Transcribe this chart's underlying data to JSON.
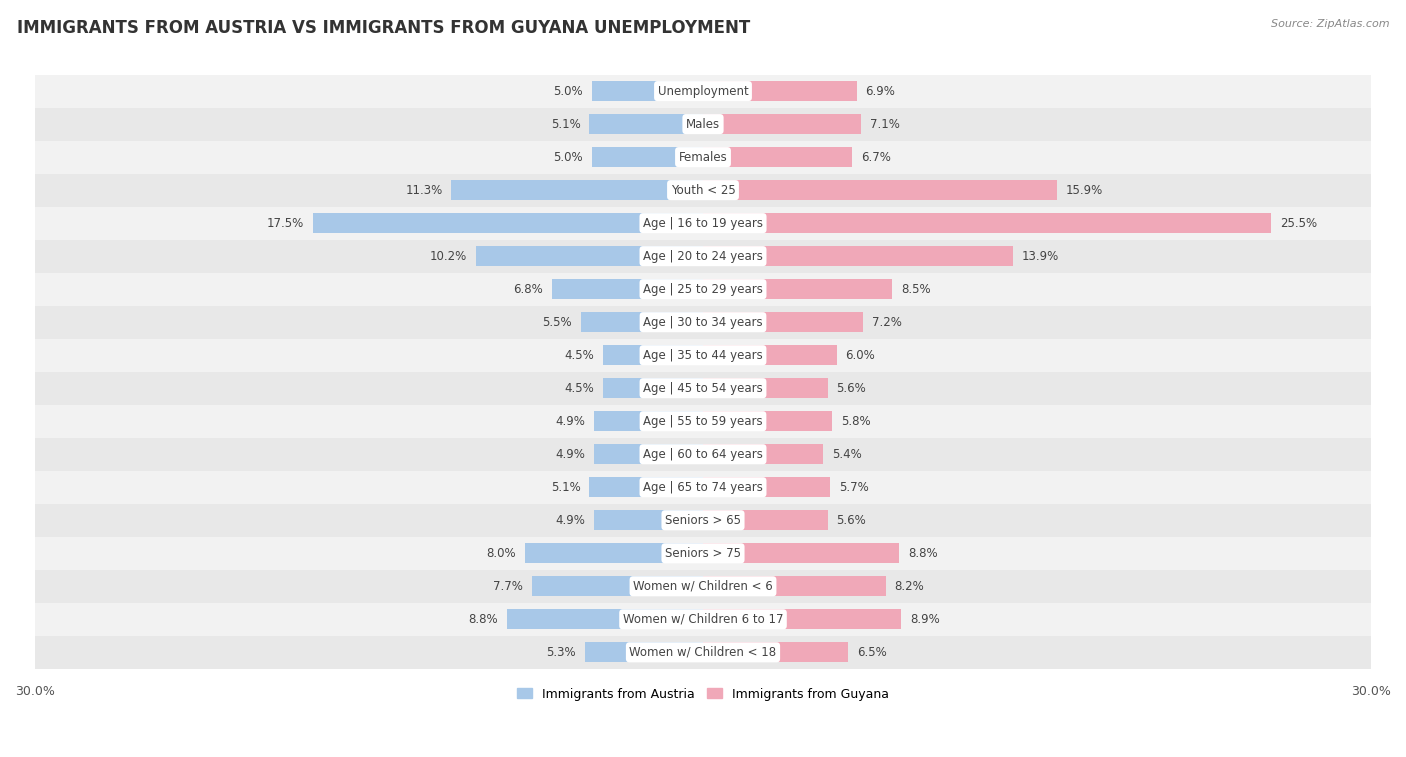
{
  "title": "IMMIGRANTS FROM AUSTRIA VS IMMIGRANTS FROM GUYANA UNEMPLOYMENT",
  "source": "Source: ZipAtlas.com",
  "categories": [
    "Unemployment",
    "Males",
    "Females",
    "Youth < 25",
    "Age | 16 to 19 years",
    "Age | 20 to 24 years",
    "Age | 25 to 29 years",
    "Age | 30 to 34 years",
    "Age | 35 to 44 years",
    "Age | 45 to 54 years",
    "Age | 55 to 59 years",
    "Age | 60 to 64 years",
    "Age | 65 to 74 years",
    "Seniors > 65",
    "Seniors > 75",
    "Women w/ Children < 6",
    "Women w/ Children 6 to 17",
    "Women w/ Children < 18"
  ],
  "austria_values": [
    5.0,
    5.1,
    5.0,
    11.3,
    17.5,
    10.2,
    6.8,
    5.5,
    4.5,
    4.5,
    4.9,
    4.9,
    5.1,
    4.9,
    8.0,
    7.7,
    8.8,
    5.3
  ],
  "guyana_values": [
    6.9,
    7.1,
    6.7,
    15.9,
    25.5,
    13.9,
    8.5,
    7.2,
    6.0,
    5.6,
    5.8,
    5.4,
    5.7,
    5.6,
    8.8,
    8.2,
    8.9,
    6.5
  ],
  "austria_color": "#a8c8e8",
  "guyana_color": "#f0a8b8",
  "row_color_even": "#f2f2f2",
  "row_color_odd": "#e8e8e8",
  "title_fontsize": 12,
  "label_fontsize": 8.5,
  "value_fontsize": 8.5,
  "axis_limit": 30.0,
  "legend_austria": "Immigrants from Austria",
  "legend_guyana": "Immigrants from Guyana"
}
